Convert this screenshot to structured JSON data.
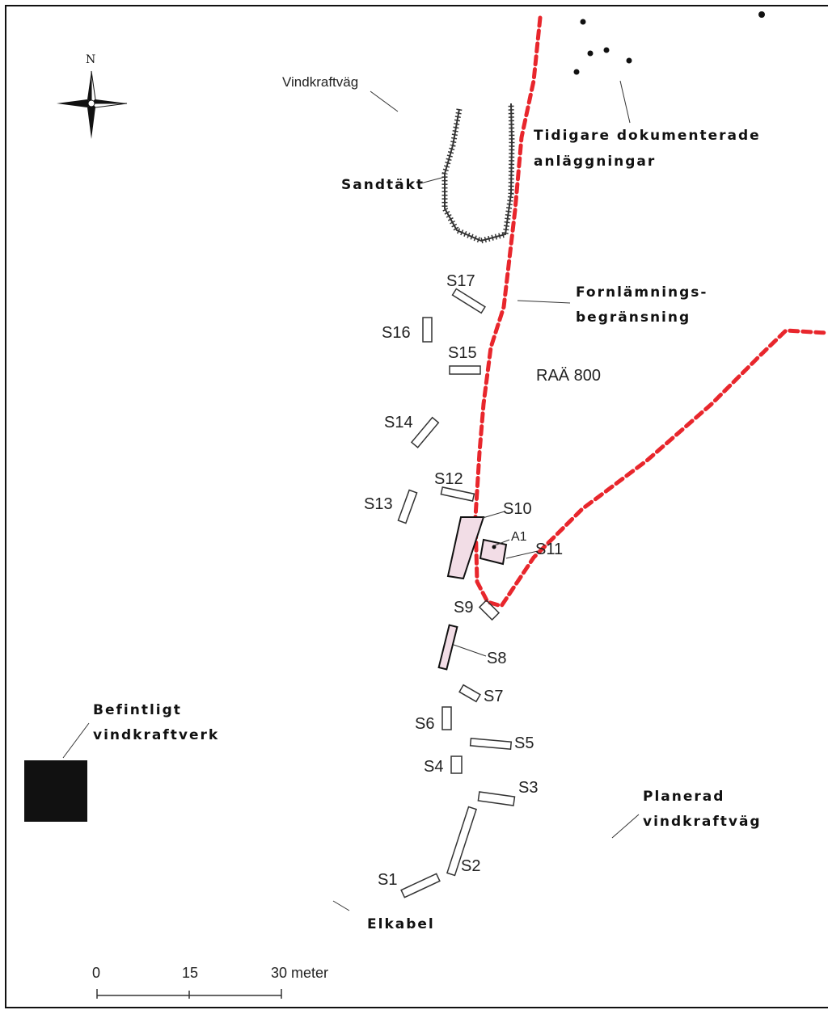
{
  "map": {
    "north_label": "N",
    "road_label": "Vindkraftväg",
    "documented_label_line1": "Tidigare dokumenterade",
    "documented_label_line2": "anläggningar",
    "sandpit_label": "Sandtäkt",
    "boundary_label_line1": "Fornlämnings-",
    "boundary_label_line2": "begränsning",
    "site_label": "RAÄ 800",
    "turbine_label_line1": "Befintligt",
    "turbine_label_line2": "vindkraftverk",
    "planned_road_line1": "Planerad",
    "planned_road_line2": "vindkraftväg",
    "cable_label": "Elkabel",
    "feature_label": "A1",
    "trenches": [
      "S1",
      "S2",
      "S3",
      "S4",
      "S5",
      "S6",
      "S7",
      "S8",
      "S9",
      "S10",
      "S11",
      "S12",
      "S13",
      "S14",
      "S15",
      "S16",
      "S17"
    ],
    "boundary_color": "#e8262c",
    "turbine_color": "#111111",
    "highlight_color": "#f2dde6"
  },
  "scale_bar": {
    "tick0": "0",
    "tick1": "15",
    "tick2": "30 meter"
  }
}
